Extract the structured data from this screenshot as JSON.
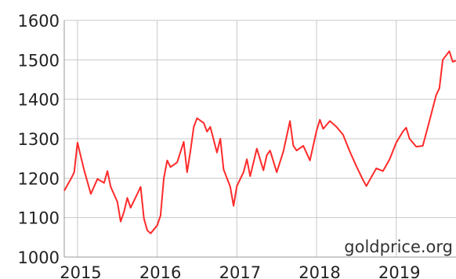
{
  "chart_data": {
    "type": "line",
    "title": "",
    "xlabel": "",
    "ylabel": "",
    "ylim": [
      1000,
      1600
    ],
    "xlim": [
      "2014-11",
      "2019-10"
    ],
    "grid": true,
    "legend": "none",
    "yticks": [
      "1000",
      "1100",
      "1200",
      "1300",
      "1400",
      "1500",
      "1600"
    ],
    "xticks": [
      {
        "label": "2015",
        "date": "2015-01"
      },
      {
        "label": "2016",
        "date": "2016-01"
      },
      {
        "label": "2017",
        "date": "2017-01"
      },
      {
        "label": "2018",
        "date": "2018-01"
      },
      {
        "label": "2019",
        "date": "2019-01"
      }
    ],
    "watermark": "goldprice.org",
    "series": [
      {
        "color": "#ff2a2a",
        "points": [
          [
            "2014-11",
            1168
          ],
          [
            "2014-12",
            1198
          ],
          [
            "2014-12",
            1215
          ],
          [
            "2015-01",
            1290
          ],
          [
            "2015-02",
            1220
          ],
          [
            "2015-02",
            1190
          ],
          [
            "2015-03",
            1160
          ],
          [
            "2015-04",
            1198
          ],
          [
            "2015-05",
            1188
          ],
          [
            "2015-05",
            1218
          ],
          [
            "2015-06",
            1178
          ],
          [
            "2015-07",
            1140
          ],
          [
            "2015-07",
            1090
          ],
          [
            "2015-08",
            1115
          ],
          [
            "2015-08",
            1150
          ],
          [
            "2015-09",
            1125
          ],
          [
            "2015-10",
            1160
          ],
          [
            "2015-10",
            1178
          ],
          [
            "2015-11",
            1098
          ],
          [
            "2015-11",
            1068
          ],
          [
            "2015-12",
            1060
          ],
          [
            "2016-01",
            1080
          ],
          [
            "2016-01",
            1105
          ],
          [
            "2016-02",
            1200
          ],
          [
            "2016-02",
            1245
          ],
          [
            "2016-03",
            1228
          ],
          [
            "2016-04",
            1240
          ],
          [
            "2016-05",
            1292
          ],
          [
            "2016-05",
            1215
          ],
          [
            "2016-06",
            1268
          ],
          [
            "2016-06",
            1330
          ],
          [
            "2016-07",
            1352
          ],
          [
            "2016-08",
            1340
          ],
          [
            "2016-08",
            1318
          ],
          [
            "2016-09",
            1330
          ],
          [
            "2016-10",
            1265
          ],
          [
            "2016-10",
            1300
          ],
          [
            "2016-11",
            1222
          ],
          [
            "2016-12",
            1178
          ],
          [
            "2016-12",
            1130
          ],
          [
            "2017-01",
            1180
          ],
          [
            "2017-02",
            1215
          ],
          [
            "2017-02",
            1248
          ],
          [
            "2017-03",
            1205
          ],
          [
            "2017-04",
            1275
          ],
          [
            "2017-05",
            1220
          ],
          [
            "2017-05",
            1258
          ],
          [
            "2017-06",
            1270
          ],
          [
            "2017-07",
            1215
          ],
          [
            "2017-08",
            1268
          ],
          [
            "2017-09",
            1345
          ],
          [
            "2017-09",
            1282
          ],
          [
            "2017-10",
            1270
          ],
          [
            "2017-11",
            1282
          ],
          [
            "2017-12",
            1245
          ],
          [
            "2018-01",
            1320
          ],
          [
            "2018-01",
            1348
          ],
          [
            "2018-02",
            1325
          ],
          [
            "2018-03",
            1345
          ],
          [
            "2018-04",
            1330
          ],
          [
            "2018-05",
            1310
          ],
          [
            "2018-06",
            1268
          ],
          [
            "2018-07",
            1230
          ],
          [
            "2018-08",
            1195
          ],
          [
            "2018-08",
            1180
          ],
          [
            "2018-09",
            1195
          ],
          [
            "2018-10",
            1225
          ],
          [
            "2018-11",
            1218
          ],
          [
            "2018-12",
            1248
          ],
          [
            "2019-01",
            1290
          ],
          [
            "2019-02",
            1318
          ],
          [
            "2019-02",
            1328
          ],
          [
            "2019-03",
            1300
          ],
          [
            "2019-04",
            1280
          ],
          [
            "2019-05",
            1282
          ],
          [
            "2019-06",
            1345
          ],
          [
            "2019-07",
            1410
          ],
          [
            "2019-07",
            1428
          ],
          [
            "2019-08",
            1500
          ],
          [
            "2019-09",
            1522
          ],
          [
            "2019-09",
            1495
          ],
          [
            "2019-10",
            1498
          ]
        ]
      }
    ]
  }
}
